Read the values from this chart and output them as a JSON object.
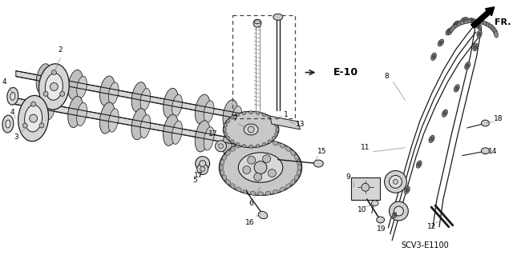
{
  "bg_color": "#ffffff",
  "fig_width": 6.4,
  "fig_height": 3.19,
  "dpi": 100,
  "diagram_code": "SCV3-E1100",
  "ref_label": "E-10",
  "fr_label": "FR.",
  "gray": "#1a1a1a",
  "lgray": "#888888",
  "mgray": "#aaaaaa",
  "dgray": "#555555"
}
